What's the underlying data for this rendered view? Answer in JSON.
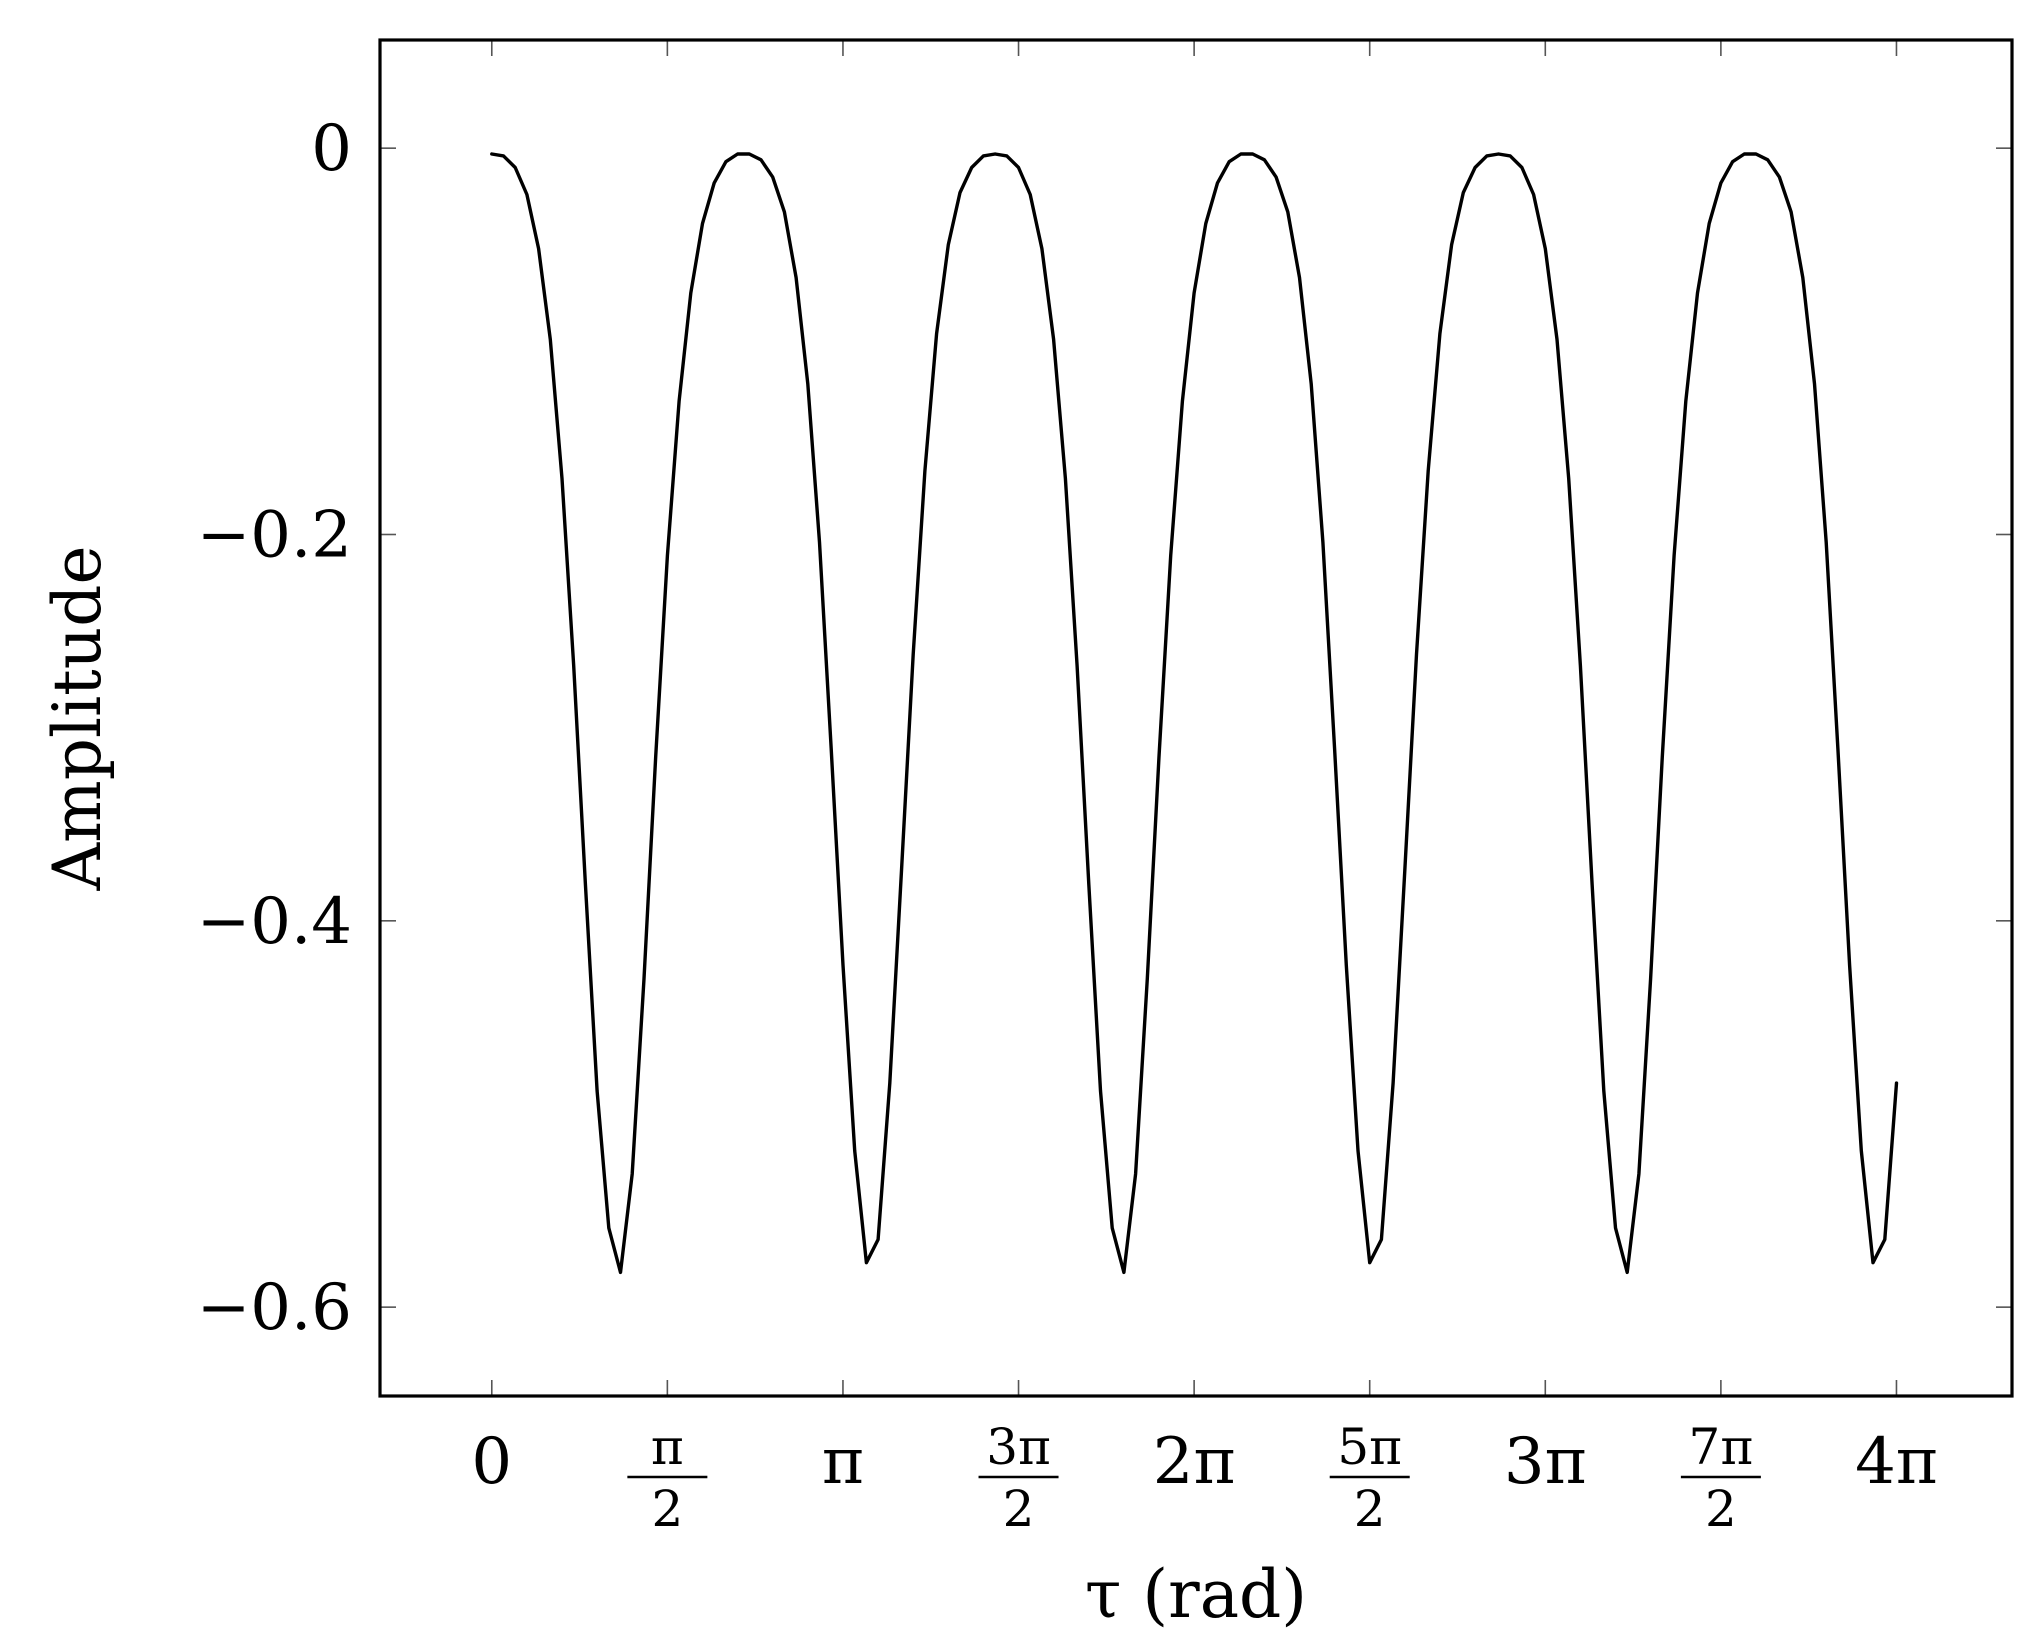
{
  "chart_data": {
    "type": "line",
    "title": "",
    "xlabel": "τ (rad)",
    "ylabel": "Amplitude",
    "x_unit": "rad",
    "xlim": [
      -1.0,
      13.6
    ],
    "ylim": [
      -0.646,
      0.056
    ],
    "grid": false,
    "legend": "none",
    "x_ticks": [
      {
        "value": 0,
        "num": "0",
        "den": ""
      },
      {
        "value": 1.5708,
        "num": "π",
        "den": "2"
      },
      {
        "value": 3.1416,
        "num": "π",
        "den": ""
      },
      {
        "value": 4.7124,
        "num": "3π",
        "den": "2"
      },
      {
        "value": 6.2832,
        "num": "2π",
        "den": ""
      },
      {
        "value": 7.854,
        "num": "5π",
        "den": "2"
      },
      {
        "value": 9.4248,
        "num": "3π",
        "den": ""
      },
      {
        "value": 10.9956,
        "num": "7π",
        "den": "2"
      },
      {
        "value": 12.5664,
        "num": "4π",
        "den": ""
      }
    ],
    "y_ticks": [
      {
        "value": 0,
        "label": "0"
      },
      {
        "value": -0.2,
        "label": "−0.2"
      },
      {
        "value": -0.4,
        "label": "−0.4"
      },
      {
        "value": -0.6,
        "label": "−0.6"
      }
    ],
    "series": [
      {
        "color": "#000000",
        "x": [
          0,
          0.1047,
          0.2094,
          0.3142,
          0.4189,
          0.5236,
          0.6283,
          0.733,
          0.8378,
          0.9425,
          1.0472,
          1.1519,
          1.2566,
          1.3614,
          1.4661,
          1.5708,
          1.6755,
          1.7802,
          1.885,
          1.9897,
          2.0944,
          2.1991,
          2.3038,
          2.4086,
          2.5133,
          2.618,
          2.7227,
          2.8274,
          2.9322,
          3.0369,
          3.1416,
          3.2463,
          3.351,
          3.4558,
          3.5605,
          3.6652,
          3.7699,
          3.8746,
          3.9794,
          4.0841,
          4.1888,
          4.2935,
          4.3982,
          4.503,
          4.6077,
          4.7124,
          4.8171,
          4.9218,
          5.0265,
          5.1313,
          5.236,
          5.3407,
          5.4454,
          5.5501,
          5.6549,
          5.7596,
          5.8643,
          5.969,
          6.0737,
          6.1785,
          6.2832,
          6.3879,
          6.4926,
          6.5973,
          6.7021,
          6.8068,
          6.9115,
          7.0162,
          7.1209,
          7.2257,
          7.3304,
          7.4351,
          7.5398,
          7.6445,
          7.7493,
          7.854,
          7.9587,
          8.0634,
          8.1681,
          8.2729,
          8.3776,
          8.4823,
          8.587,
          8.6917,
          8.7965,
          8.9012,
          9.0059,
          9.1106,
          9.2153,
          9.3201,
          9.4248,
          9.5295,
          9.6342,
          9.7389,
          9.8437,
          9.9484,
          10.0531,
          10.1578,
          10.2625,
          10.3673,
          10.472,
          10.5767,
          10.6814,
          10.7861,
          10.8909,
          10.9956,
          11.1003,
          11.205,
          11.3097,
          11.4145,
          11.5192,
          11.6239,
          11.7286,
          11.8333,
          11.9381,
          12.0428,
          12.1475,
          12.2522,
          12.3569,
          12.4617,
          12.5664
        ],
        "y": [
          -0.003,
          -0.004,
          -0.01,
          -0.024,
          -0.052,
          -0.099,
          -0.171,
          -0.268,
          -0.381,
          -0.488,
          -0.559,
          -0.582,
          -0.531,
          -0.43,
          -0.315,
          -0.211,
          -0.131,
          -0.075,
          -0.039,
          -0.018,
          -0.007,
          -0.003,
          -0.003,
          -0.006,
          -0.015,
          -0.033,
          -0.067,
          -0.122,
          -0.204,
          -0.311,
          -0.423,
          -0.519,
          -0.577,
          -0.565,
          -0.484,
          -0.374,
          -0.262,
          -0.167,
          -0.096,
          -0.05,
          -0.023,
          -0.01,
          -0.004,
          -0.003,
          -0.004,
          -0.01,
          -0.024,
          -0.052,
          -0.099,
          -0.171,
          -0.268,
          -0.381,
          -0.488,
          -0.559,
          -0.582,
          -0.531,
          -0.43,
          -0.315,
          -0.211,
          -0.131,
          -0.075,
          -0.039,
          -0.018,
          -0.007,
          -0.003,
          -0.003,
          -0.006,
          -0.015,
          -0.033,
          -0.067,
          -0.122,
          -0.204,
          -0.311,
          -0.423,
          -0.519,
          -0.577,
          -0.565,
          -0.484,
          -0.374,
          -0.262,
          -0.167,
          -0.096,
          -0.05,
          -0.023,
          -0.01,
          -0.004,
          -0.003,
          -0.004,
          -0.01,
          -0.024,
          -0.052,
          -0.099,
          -0.171,
          -0.268,
          -0.381,
          -0.488,
          -0.559,
          -0.582,
          -0.531,
          -0.43,
          -0.315,
          -0.211,
          -0.131,
          -0.075,
          -0.039,
          -0.018,
          -0.007,
          -0.003,
          -0.003,
          -0.006,
          -0.015,
          -0.033,
          -0.067,
          -0.122,
          -0.204,
          -0.311,
          -0.423,
          -0.519,
          -0.577,
          -0.565,
          -0.484
        ]
      }
    ]
  }
}
